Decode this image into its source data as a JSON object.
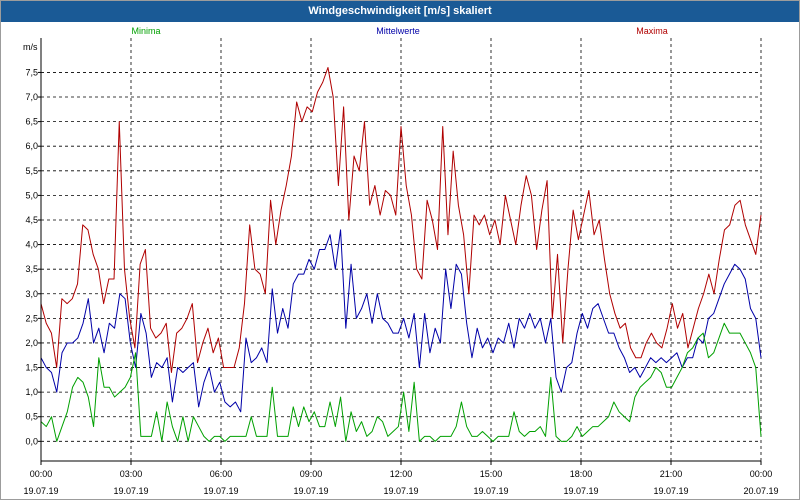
{
  "window": {
    "title": "Windgeschwindigkeit [m/s] skaliert"
  },
  "chart_data": {
    "type": "line",
    "title": "Windgeschwindigkeit [m/s] skaliert",
    "ylabel": "m/s",
    "ylim": [
      -0.4,
      8.2
    ],
    "yticks": [
      "0,0",
      "0,5",
      "1,0",
      "1,5",
      "2,0",
      "2,5",
      "3,0",
      "3,5",
      "4,0",
      "4,5",
      "5,0",
      "5,5",
      "6,0",
      "6,5",
      "7,0",
      "7,5"
    ],
    "xlim": [
      0,
      24
    ],
    "xticks": [
      {
        "time": "00:00",
        "date": "19.07.19"
      },
      {
        "time": "03:00",
        "date": "19.07.19"
      },
      {
        "time": "06:00",
        "date": "19.07.19"
      },
      {
        "time": "09:00",
        "date": "19.07.19"
      },
      {
        "time": "12:00",
        "date": "19.07.19"
      },
      {
        "time": "15:00",
        "date": "19.07.19"
      },
      {
        "time": "18:00",
        "date": "19.07.19"
      },
      {
        "time": "21:00",
        "date": "19.07.19"
      },
      {
        "time": "00:00",
        "date": "20.07.19"
      }
    ],
    "grid": true,
    "legend_position": "top",
    "series": [
      {
        "name": "Maxima",
        "color": "#b00000",
        "values": [
          2.8,
          2.4,
          2.2,
          1.5,
          2.9,
          2.8,
          2.9,
          3.2,
          4.4,
          4.3,
          3.8,
          3.5,
          2.8,
          3.3,
          3.3,
          6.5,
          3.5,
          2.5,
          1.9,
          3.6,
          3.9,
          2.3,
          2.1,
          2.2,
          2.4,
          1.4,
          2.2,
          2.3,
          2.5,
          2.8,
          1.6,
          2.0,
          2.3,
          1.8,
          2.1,
          1.5,
          1.5,
          1.5,
          1.9,
          2.8,
          4.4,
          3.5,
          3.4,
          3.0,
          4.9,
          4.0,
          4.7,
          5.2,
          5.8,
          6.9,
          6.5,
          6.8,
          6.7,
          7.1,
          7.3,
          7.6,
          7.0,
          5.2,
          6.8,
          4.5,
          5.8,
          5.5,
          6.5,
          4.8,
          5.2,
          4.6,
          5.1,
          5.0,
          4.6,
          6.4,
          5.2,
          4.6,
          3.5,
          3.3,
          4.9,
          4.5,
          3.9,
          6.4,
          4.2,
          5.9,
          4.8,
          4.2,
          3.0,
          4.6,
          4.4,
          4.6,
          4.2,
          4.5,
          4.0,
          5.0,
          4.5,
          4.0,
          4.8,
          5.4,
          5.0,
          3.9,
          4.7,
          5.3,
          2.5,
          3.8,
          2.0,
          3.5,
          4.7,
          4.1,
          4.6,
          5.1,
          4.2,
          4.5,
          3.7,
          3.0,
          2.6,
          2.3,
          2.4,
          1.9,
          1.7,
          1.7,
          2.0,
          2.2,
          2.0,
          1.9,
          2.3,
          2.8,
          2.3,
          2.6,
          1.9,
          2.3,
          2.7,
          3.0,
          3.4,
          3.0,
          3.7,
          4.3,
          4.4,
          4.8,
          4.9,
          4.4,
          4.1,
          3.8,
          4.6
        ]
      },
      {
        "name": "Mittelwerte",
        "color": "#0000a8",
        "values": [
          1.7,
          1.5,
          1.4,
          1.0,
          1.8,
          2.0,
          2.0,
          2.1,
          2.4,
          2.9,
          2.0,
          2.3,
          1.8,
          2.4,
          2.3,
          3.0,
          2.9,
          2.0,
          1.5,
          2.6,
          2.2,
          1.3,
          1.6,
          1.5,
          1.7,
          0.8,
          1.5,
          1.4,
          1.5,
          1.6,
          0.7,
          1.2,
          1.5,
          1.0,
          1.2,
          0.8,
          0.7,
          0.8,
          0.6,
          2.1,
          1.6,
          1.7,
          1.9,
          1.6,
          3.1,
          2.2,
          2.7,
          2.3,
          3.2,
          3.4,
          3.4,
          3.7,
          3.5,
          3.9,
          3.9,
          4.2,
          3.5,
          4.3,
          2.3,
          3.6,
          2.5,
          2.7,
          3.0,
          2.4,
          3.0,
          2.5,
          2.4,
          2.2,
          2.2,
          2.5,
          2.1,
          2.6,
          1.5,
          2.6,
          1.8,
          2.3,
          2.0,
          3.5,
          2.7,
          3.6,
          3.4,
          2.4,
          1.7,
          2.3,
          1.9,
          2.1,
          1.8,
          2.1,
          2.0,
          2.4,
          1.9,
          2.5,
          2.3,
          2.6,
          2.3,
          2.5,
          2.0,
          2.5,
          1.3,
          1.0,
          1.5,
          1.6,
          2.2,
          2.6,
          2.3,
          2.7,
          2.8,
          2.5,
          2.2,
          2.2,
          1.9,
          1.7,
          1.4,
          1.5,
          1.3,
          1.5,
          1.7,
          1.6,
          1.7,
          1.6,
          1.7,
          1.8,
          1.5,
          1.7,
          1.7,
          2.1,
          2.0,
          2.5,
          2.6,
          2.9,
          3.2,
          3.4,
          3.6,
          3.5,
          3.3,
          2.7,
          2.5,
          1.7
        ]
      },
      {
        "name": "Minima",
        "color": "#00a000",
        "values": [
          0.4,
          0.3,
          0.5,
          0.0,
          0.3,
          0.6,
          1.1,
          1.3,
          1.2,
          0.9,
          0.3,
          1.7,
          1.1,
          1.1,
          0.9,
          1.0,
          1.1,
          1.3,
          1.8,
          0.1,
          0.1,
          0.1,
          0.6,
          0.0,
          0.8,
          0.3,
          0.0,
          0.5,
          0.0,
          0.5,
          0.3,
          0.1,
          0.0,
          0.1,
          0.1,
          0.0,
          0.1,
          0.1,
          0.1,
          0.1,
          0.5,
          0.1,
          0.1,
          0.1,
          1.1,
          0.1,
          0.1,
          0.1,
          0.7,
          0.3,
          0.7,
          0.4,
          0.6,
          0.3,
          0.3,
          0.8,
          0.3,
          0.9,
          0.0,
          0.6,
          0.2,
          0.4,
          0.1,
          0.2,
          0.5,
          0.4,
          0.1,
          0.2,
          0.3,
          1.0,
          0.2,
          1.2,
          0.0,
          0.1,
          0.1,
          0.0,
          0.1,
          0.1,
          0.1,
          0.3,
          0.8,
          0.3,
          0.1,
          0.1,
          0.2,
          0.1,
          0.0,
          0.1,
          0.1,
          0.1,
          0.6,
          0.2,
          0.1,
          0.2,
          0.2,
          0.3,
          0.1,
          1.3,
          0.1,
          0.0,
          0.0,
          0.1,
          0.3,
          0.1,
          0.2,
          0.3,
          0.3,
          0.4,
          0.5,
          0.8,
          0.6,
          0.5,
          0.4,
          0.9,
          1.1,
          1.2,
          1.3,
          1.5,
          1.4,
          1.1,
          1.1,
          1.3,
          1.5,
          1.8,
          1.9,
          2.1,
          2.2,
          1.7,
          1.8,
          2.1,
          2.4,
          2.2,
          2.2,
          2.2,
          2.0,
          1.8,
          1.5,
          0.1
        ]
      }
    ]
  }
}
